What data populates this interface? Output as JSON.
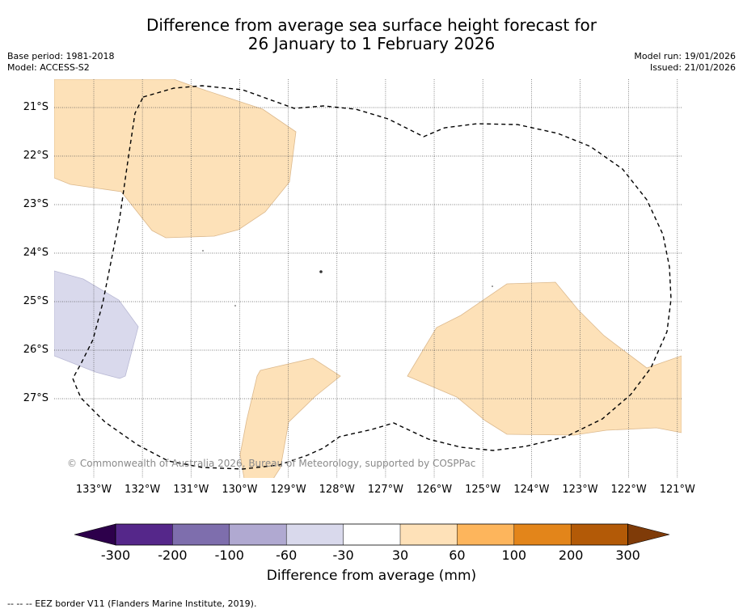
{
  "title": {
    "line1": "Difference from average sea surface height forecast for",
    "line2": "26 January to 1 February 2026"
  },
  "meta": {
    "base_period": "Base period: 1981-2018",
    "model": "Model: ACCESS-S2",
    "model_run": "Model run: 19/01/2026",
    "issued": "Issued: 21/01/2026"
  },
  "map": {
    "lat_labels": [
      "21°S",
      "22°S",
      "23°S",
      "24°S",
      "25°S",
      "26°S",
      "27°S"
    ],
    "lon_labels": [
      "133°W",
      "132°W",
      "131°W",
      "130°W",
      "129°W",
      "128°W",
      "127°W",
      "126°W",
      "125°W",
      "124°W",
      "123°W",
      "122°W",
      "121°W"
    ],
    "copyright": "© Commonwealth of Australia 2026, Bureau of Meteorology, supported by COSPPac"
  },
  "colorbar": {
    "labels": [
      "-300",
      "-200",
      "-100",
      "-60",
      "-30",
      "30",
      "60",
      "100",
      "200",
      "300"
    ],
    "colors": [
      "#55278a",
      "#7e6ead",
      "#b0a9d1",
      "#d9d9ec",
      "#ffffff",
      "#fee1b8",
      "#fdb55c",
      "#e3851a",
      "#b35a07"
    ],
    "under_color": "#2d004b",
    "over_color": "#7f3b08",
    "title": "Difference from average (mm)"
  },
  "footnote": "--  --  -- EEZ border V11 (Flanders Marine Institute, 2019).",
  "colors": {
    "positive_anomaly": "#fde1b8",
    "negative_anomaly": "#d9d9ec",
    "gridline": "#555555"
  }
}
